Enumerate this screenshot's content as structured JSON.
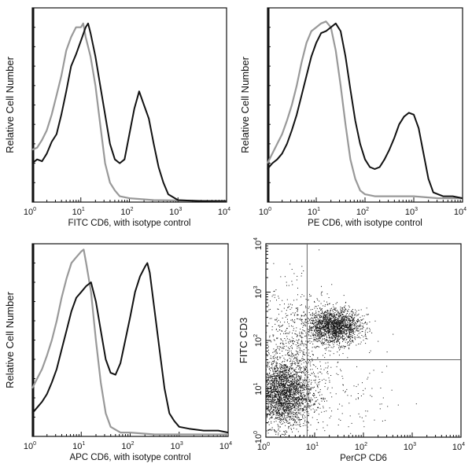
{
  "chart_data": [
    {
      "type": "line",
      "xlabel": "FITC CD6,  with isotype control",
      "ylabel": "Relative Cell Number",
      "xscale": "log",
      "xlim": [
        1,
        10000
      ],
      "xticks": [
        "10",
        "10",
        "10",
        "10",
        "10"
      ],
      "xtick_exp": [
        "0",
        "1",
        "2",
        "3",
        "4"
      ],
      "series": [
        {
          "color": "#111111",
          "log10x": [
            0,
            0.1,
            0.2,
            0.3,
            0.4,
            0.5,
            0.6,
            0.7,
            0.8,
            0.9,
            1.0,
            1.1,
            1.15,
            1.2,
            1.3,
            1.4,
            1.5,
            1.6,
            1.7,
            1.8,
            1.9,
            2.0,
            2.1,
            2.2,
            2.3,
            2.4,
            2.5,
            2.6,
            2.7,
            2.8,
            3.0,
            3.5,
            4.0
          ],
          "y": [
            0.2,
            0.22,
            0.21,
            0.25,
            0.31,
            0.35,
            0.45,
            0.57,
            0.7,
            0.76,
            0.83,
            0.9,
            0.92,
            0.87,
            0.75,
            0.6,
            0.45,
            0.3,
            0.22,
            0.2,
            0.22,
            0.35,
            0.48,
            0.57,
            0.5,
            0.43,
            0.3,
            0.18,
            0.1,
            0.04,
            0.01,
            0.005,
            0.005
          ]
        },
        {
          "color": "#999999",
          "log10x": [
            0,
            0.1,
            0.2,
            0.3,
            0.4,
            0.5,
            0.6,
            0.7,
            0.8,
            0.9,
            1.0,
            1.05,
            1.1,
            1.2,
            1.3,
            1.4,
            1.5,
            1.6,
            1.7,
            1.8,
            2.0,
            2.5,
            4.0
          ],
          "y": [
            0.27,
            0.28,
            0.32,
            0.37,
            0.45,
            0.55,
            0.65,
            0.78,
            0.85,
            0.9,
            0.9,
            0.92,
            0.85,
            0.75,
            0.6,
            0.4,
            0.2,
            0.1,
            0.06,
            0.03,
            0.02,
            0.01,
            0.005
          ]
        }
      ]
    },
    {
      "type": "line",
      "xlabel": "PE CD6,  with isotype control",
      "ylabel": "Relative Cell Number",
      "xscale": "log",
      "xlim": [
        1,
        10000
      ],
      "xticks": [
        "10",
        "10",
        "10",
        "10",
        "10"
      ],
      "xtick_exp": [
        "0",
        "1",
        "2",
        "3",
        "4"
      ],
      "series": [
        {
          "color": "#111111",
          "log10x": [
            0,
            0.1,
            0.2,
            0.3,
            0.4,
            0.5,
            0.6,
            0.7,
            0.8,
            0.9,
            1.0,
            1.1,
            1.2,
            1.3,
            1.4,
            1.5,
            1.6,
            1.7,
            1.8,
            1.9,
            2.0,
            2.1,
            2.2,
            2.3,
            2.4,
            2.5,
            2.6,
            2.7,
            2.8,
            2.9,
            3.0,
            3.1,
            3.2,
            3.3,
            3.4,
            3.6,
            3.8,
            4.0
          ],
          "y": [
            0.17,
            0.2,
            0.22,
            0.25,
            0.3,
            0.37,
            0.45,
            0.55,
            0.65,
            0.75,
            0.82,
            0.87,
            0.88,
            0.9,
            0.92,
            0.88,
            0.75,
            0.58,
            0.42,
            0.3,
            0.22,
            0.18,
            0.17,
            0.18,
            0.22,
            0.27,
            0.33,
            0.4,
            0.44,
            0.46,
            0.45,
            0.38,
            0.25,
            0.12,
            0.05,
            0.03,
            0.03,
            0.02
          ]
        },
        {
          "color": "#999999",
          "log10x": [
            0,
            0.1,
            0.2,
            0.3,
            0.4,
            0.5,
            0.6,
            0.7,
            0.8,
            0.9,
            1.0,
            1.1,
            1.2,
            1.3,
            1.4,
            1.5,
            1.6,
            1.7,
            1.8,
            1.9,
            2.0,
            2.2,
            2.5,
            3.0,
            3.5,
            4.0
          ],
          "y": [
            0.2,
            0.25,
            0.3,
            0.35,
            0.42,
            0.5,
            0.6,
            0.72,
            0.82,
            0.88,
            0.9,
            0.92,
            0.93,
            0.9,
            0.78,
            0.6,
            0.4,
            0.22,
            0.12,
            0.06,
            0.04,
            0.03,
            0.03,
            0.03,
            0.02,
            0.02
          ]
        }
      ]
    },
    {
      "type": "line",
      "xlabel": "APC CD6, with isotype control",
      "ylabel": "Relative Cell Number",
      "xscale": "log",
      "xlim": [
        1,
        10000
      ],
      "xticks": [
        "10",
        "10",
        "10",
        "10",
        "10"
      ],
      "xtick_exp": [
        "0",
        "1",
        "2",
        "3",
        "4"
      ],
      "series": [
        {
          "color": "#111111",
          "log10x": [
            0,
            0.1,
            0.2,
            0.3,
            0.4,
            0.5,
            0.6,
            0.7,
            0.8,
            0.9,
            1.0,
            1.1,
            1.2,
            1.3,
            1.4,
            1.5,
            1.6,
            1.7,
            1.8,
            1.9,
            2.0,
            2.1,
            2.2,
            2.3,
            2.35,
            2.4,
            2.5,
            2.6,
            2.7,
            2.8,
            2.9,
            3.0,
            3.2,
            3.5,
            3.8,
            4.0
          ],
          "y": [
            0.12,
            0.15,
            0.18,
            0.22,
            0.28,
            0.35,
            0.45,
            0.55,
            0.65,
            0.72,
            0.75,
            0.78,
            0.8,
            0.7,
            0.55,
            0.4,
            0.33,
            0.32,
            0.38,
            0.5,
            0.62,
            0.75,
            0.83,
            0.88,
            0.9,
            0.85,
            0.65,
            0.45,
            0.25,
            0.12,
            0.08,
            0.05,
            0.04,
            0.03,
            0.03,
            0.02
          ]
        },
        {
          "color": "#999999",
          "log10x": [
            0,
            0.1,
            0.2,
            0.3,
            0.4,
            0.5,
            0.6,
            0.7,
            0.8,
            0.9,
            1.0,
            1.05,
            1.1,
            1.2,
            1.3,
            1.4,
            1.5,
            1.6,
            1.8,
            2.0,
            2.5,
            3.0,
            4.0
          ],
          "y": [
            0.25,
            0.3,
            0.35,
            0.42,
            0.5,
            0.6,
            0.72,
            0.82,
            0.9,
            0.93,
            0.96,
            0.97,
            0.9,
            0.75,
            0.5,
            0.28,
            0.12,
            0.05,
            0.02,
            0.02,
            0.01,
            0.01,
            0.01
          ]
        }
      ]
    },
    {
      "type": "scatter",
      "xlabel": "PerCP CD6",
      "ylabel": "FITC CD3",
      "xscale": "log",
      "yscale": "log",
      "xlim": [
        1,
        10000
      ],
      "ylim": [
        1,
        10000
      ],
      "xticks": [
        "10",
        "10",
        "10",
        "10",
        "10"
      ],
      "xtick_exp": [
        "0",
        "1",
        "2",
        "3",
        "4"
      ],
      "yticks": [
        "10",
        "10",
        "10",
        "10",
        "10"
      ],
      "ytick_exp": [
        "0",
        "1",
        "2",
        "3",
        "4"
      ],
      "quadrant_gate": {
        "x": 7,
        "y": 40
      },
      "populations": [
        {
          "center_log10": [
            0.35,
            0.9
          ],
          "spread_log10": [
            0.3,
            0.35
          ],
          "count": 2600
        },
        {
          "center_log10": [
            1.4,
            2.3
          ],
          "spread_log10": [
            0.28,
            0.18
          ],
          "count": 1800
        },
        {
          "center_log10": [
            0.6,
            1.9
          ],
          "spread_log10": [
            0.4,
            0.6
          ],
          "count": 700
        },
        {
          "center_log10": [
            1.6,
            0.8
          ],
          "spread_log10": [
            0.6,
            0.4
          ],
          "count": 120
        }
      ],
      "color": "#111111"
    }
  ]
}
